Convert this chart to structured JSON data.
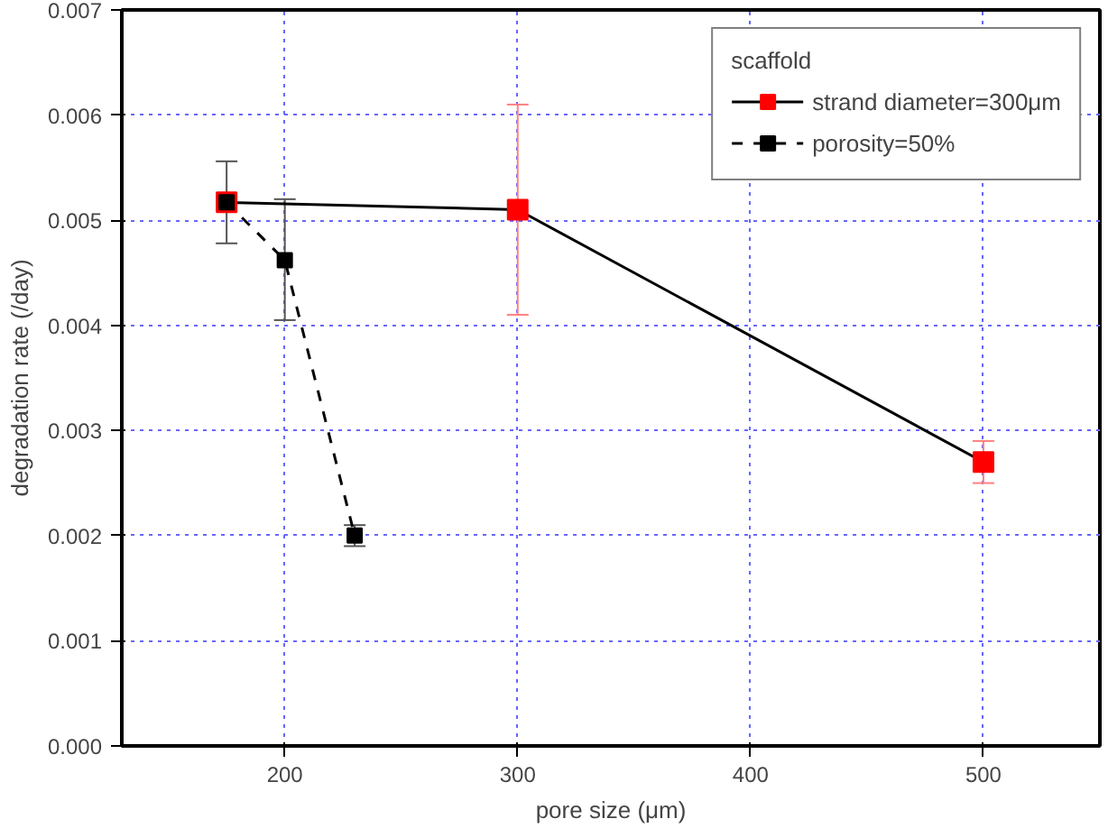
{
  "chart_data": {
    "type": "line",
    "xlabel": "pore size (μm)",
    "ylabel": "degradation rate (/day)",
    "legend_title": "scaffold",
    "xlim": [
      130,
      550
    ],
    "xticks": [
      200,
      300,
      400,
      500
    ],
    "ylim": [
      0,
      0.007
    ],
    "yticks": [
      {
        "value": 0,
        "label": "0.000"
      },
      {
        "value": 0.001,
        "label": "0.001"
      },
      {
        "value": 0.002,
        "label": "0.002"
      },
      {
        "value": 0.003,
        "label": "0.003"
      },
      {
        "value": 0.004,
        "label": "0.004"
      },
      {
        "value": 0.005,
        "label": "0.005"
      },
      {
        "value": 0.006,
        "label": "0.006"
      },
      {
        "value": 0.007,
        "label": "0.007"
      }
    ],
    "grid": true,
    "legend": "top right",
    "marker": "square",
    "series": [
      {
        "name": "strand diameter=300μm",
        "color": "#ff0000",
        "line_style": "solid",
        "x": [
          175,
          300,
          500
        ],
        "values": [
          0.00517,
          0.0051,
          0.0027
        ],
        "errors": [
          null,
          [
            0.0041,
            0.0061
          ],
          [
            0.0025,
            0.0029
          ]
        ]
      },
      {
        "name": "porosity=50%",
        "color": "#000000",
        "line_style": "dashed",
        "x": [
          175,
          200,
          230
        ],
        "values": [
          0.00517,
          0.00462,
          0.002
        ],
        "errors": [
          [
            0.00478,
            0.00556
          ],
          [
            0.00405,
            0.0052
          ],
          [
            0.0019,
            0.0021
          ]
        ]
      }
    ]
  }
}
